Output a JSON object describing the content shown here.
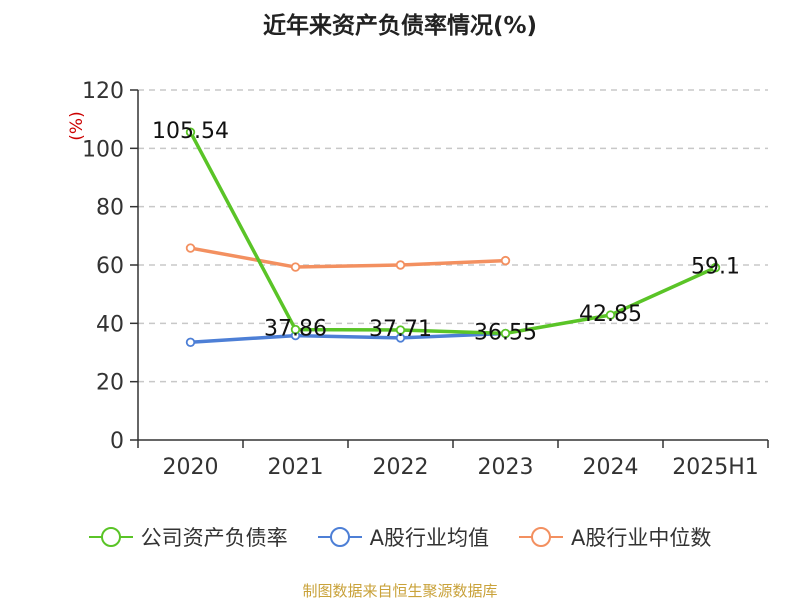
{
  "title": "近年来资产负债率情况(%)",
  "source": "制图数据来自恒生聚源数据库",
  "colors": {
    "company": "#5ac427",
    "industry_avg": "#4d7fd6",
    "industry_median": "#f39060",
    "unit_label": "#cc0000"
  },
  "chart_data": {
    "type": "line",
    "title": "近年来资产负债率情况(%)",
    "ylabel": "(%)",
    "xlabel": "",
    "categories": [
      "2020",
      "2021",
      "2022",
      "2023",
      "2024",
      "2025H1"
    ],
    "ylim": [
      0,
      120
    ],
    "yticks": [
      0,
      20,
      40,
      60,
      80,
      100,
      120
    ],
    "grid": true,
    "legend_position": "bottom",
    "series": [
      {
        "name": "公司资产负债率",
        "color": "#5ac427",
        "values": [
          105.54,
          37.86,
          37.71,
          36.55,
          42.85,
          59.1
        ],
        "labels": [
          "105.54",
          "37.86",
          "37.71",
          "36.55",
          "42.85",
          "59.1"
        ]
      },
      {
        "name": "A股行业均值",
        "color": "#4d7fd6",
        "values": [
          33.5,
          35.8,
          35.0,
          36.5,
          null,
          null
        ]
      },
      {
        "name": "A股行业中位数",
        "color": "#f39060",
        "values": [
          65.8,
          59.3,
          60.0,
          61.5,
          null,
          null
        ]
      }
    ]
  }
}
